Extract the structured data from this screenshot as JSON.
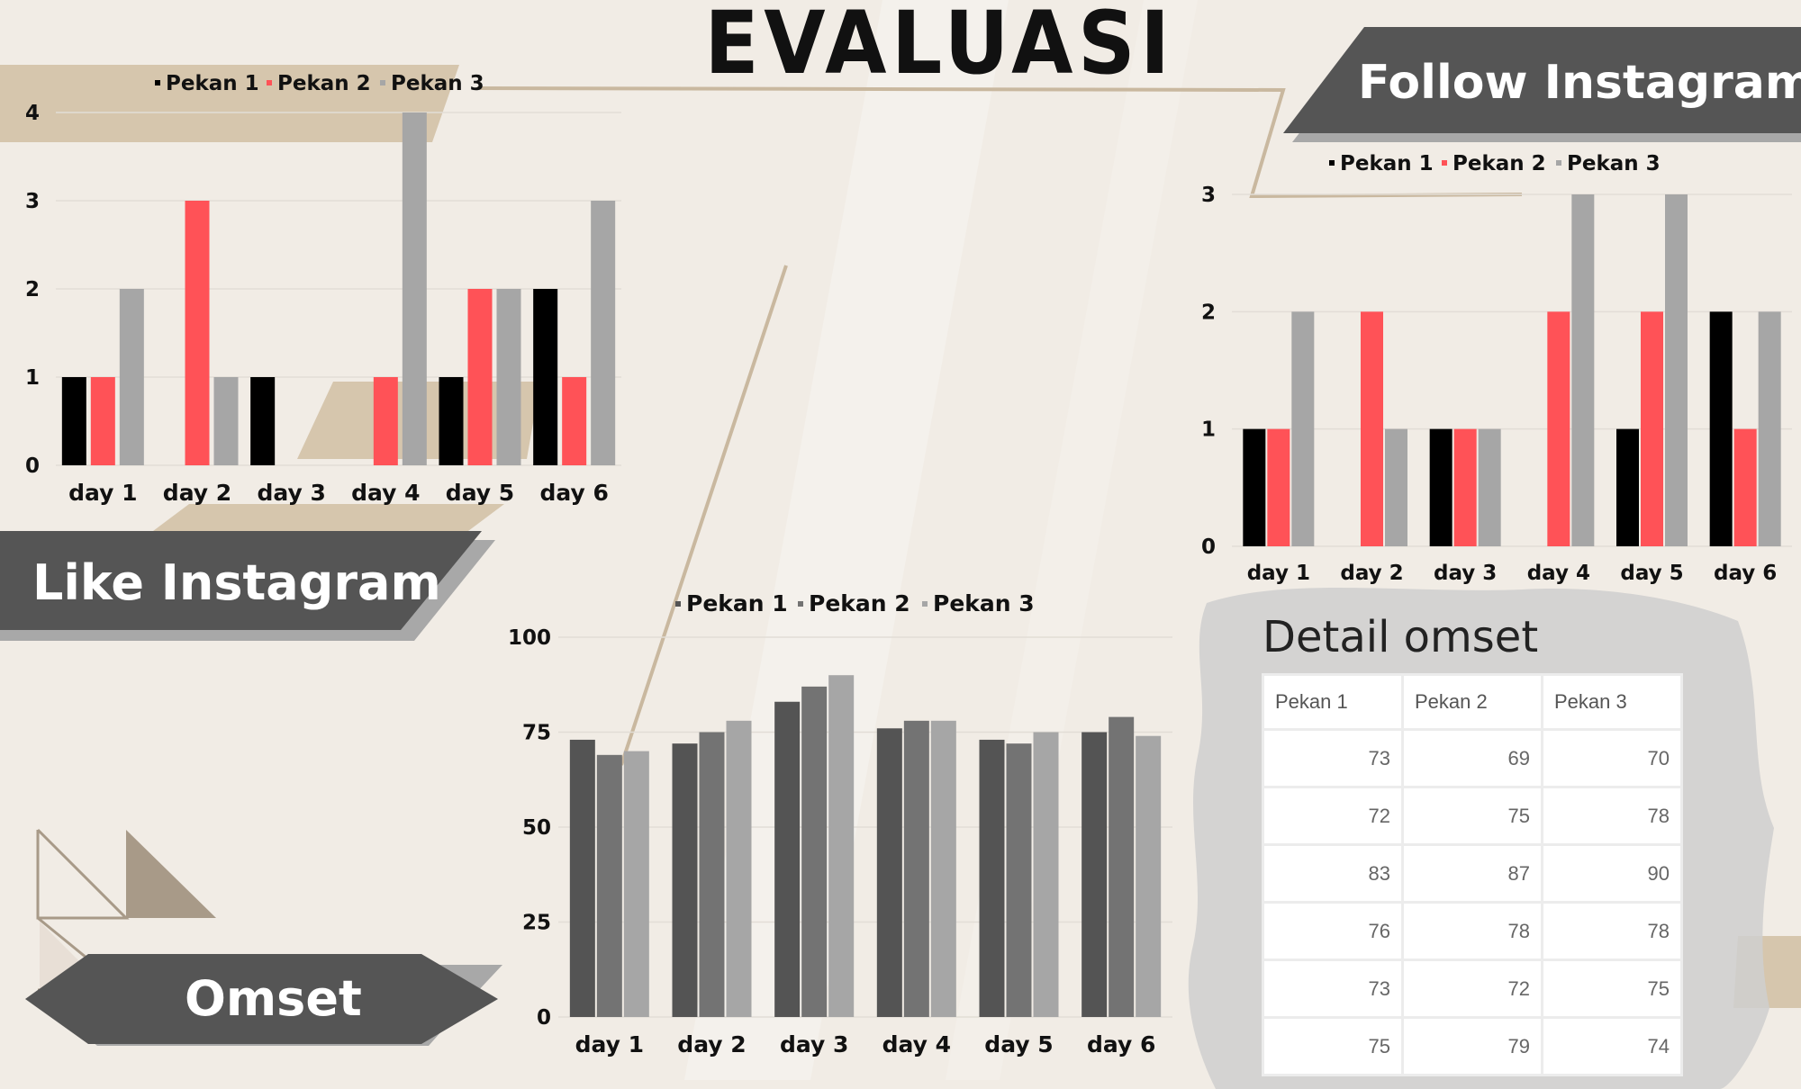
{
  "page": {
    "title": "EVALUASI"
  },
  "labels": {
    "like": "Like Instagram",
    "follow": "Follow Instagram",
    "omset": "Omset"
  },
  "colors": {
    "background": "#f1ece5",
    "accent_tan": "#d6c6ad",
    "banner": "#555555",
    "banner_shadow": "#a8a8a8",
    "pekan1_instagram": "#000000",
    "pekan2_instagram": "#ff5257",
    "pekan3_instagram": "#a6a6a6",
    "pekan1_omset": "#545454",
    "pekan2_omset": "#737373",
    "pekan3_omset": "#a6a6a6"
  },
  "chart_data": [
    {
      "id": "like",
      "type": "bar",
      "categories": [
        "day 1",
        "day 2",
        "day 3",
        "day 4",
        "day 5",
        "day 6"
      ],
      "series": [
        {
          "name": "Pekan 1",
          "values": [
            1,
            0,
            1,
            0,
            1,
            2
          ]
        },
        {
          "name": "Pekan 2",
          "values": [
            1,
            3,
            0,
            1,
            2,
            1
          ]
        },
        {
          "name": "Pekan 3",
          "values": [
            2,
            1,
            0,
            4,
            2,
            3
          ]
        }
      ],
      "yticks": [
        "0",
        "1",
        "2",
        "3",
        "4"
      ],
      "ylim": [
        0,
        4
      ],
      "legend": "top",
      "grid": true
    },
    {
      "id": "follow",
      "type": "bar",
      "categories": [
        "day 1",
        "day 2",
        "day 3",
        "day 4",
        "day 5",
        "day 6"
      ],
      "series": [
        {
          "name": "Pekan 1",
          "values": [
            1,
            0,
            1,
            0,
            1,
            2
          ]
        },
        {
          "name": "Pekan 2",
          "values": [
            1,
            2,
            1,
            2,
            2,
            1
          ]
        },
        {
          "name": "Pekan 3",
          "values": [
            2,
            1,
            1,
            3,
            3,
            2
          ]
        }
      ],
      "yticks": [
        "0",
        "1",
        "2",
        "3"
      ],
      "ylim": [
        0,
        3
      ],
      "legend": "top",
      "grid": true
    },
    {
      "id": "omset",
      "type": "bar",
      "categories": [
        "day 1",
        "day 2",
        "day 3",
        "day 4",
        "day 5",
        "day 6"
      ],
      "series": [
        {
          "name": "Pekan 1",
          "values": [
            73,
            72,
            83,
            76,
            73,
            75
          ]
        },
        {
          "name": "Pekan 2",
          "values": [
            69,
            75,
            87,
            78,
            72,
            79
          ]
        },
        {
          "name": "Pekan 3",
          "values": [
            70,
            78,
            90,
            78,
            75,
            74
          ]
        }
      ],
      "yticks": [
        "0",
        "25",
        "50",
        "75",
        "100"
      ],
      "ylim": [
        0,
        100
      ],
      "legend": "top",
      "grid": true
    }
  ],
  "omset_table": {
    "title": "Detail omset",
    "headers": [
      "Pekan 1",
      "Pekan 2",
      "Pekan 3"
    ],
    "rows": [
      [
        "73",
        "69",
        "70"
      ],
      [
        "72",
        "75",
        "78"
      ],
      [
        "83",
        "87",
        "90"
      ],
      [
        "76",
        "78",
        "78"
      ],
      [
        "73",
        "72",
        "75"
      ],
      [
        "75",
        "79",
        "74"
      ]
    ]
  }
}
